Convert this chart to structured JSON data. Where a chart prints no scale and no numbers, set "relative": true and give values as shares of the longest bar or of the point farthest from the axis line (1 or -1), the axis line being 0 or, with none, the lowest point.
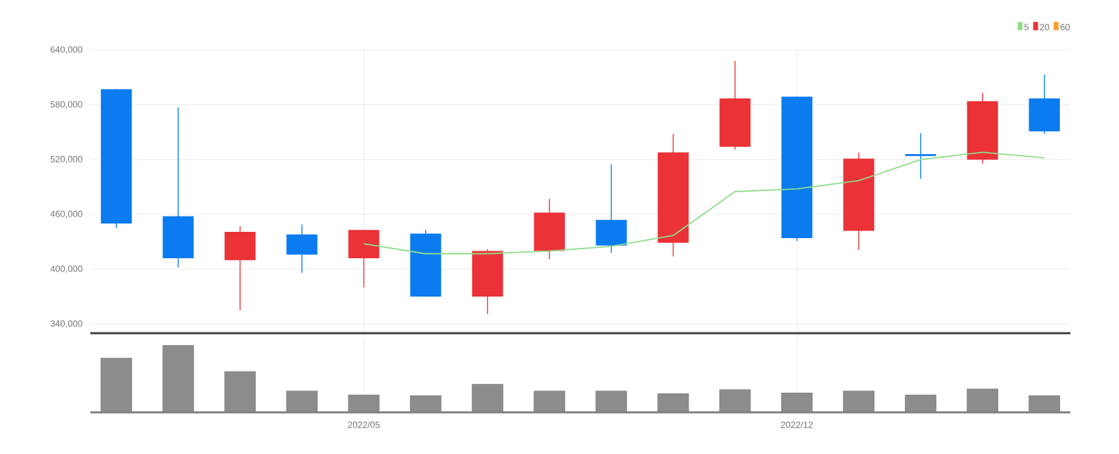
{
  "chart_data": [
    {
      "type": "candlestick",
      "categories": [
        null,
        null,
        null,
        null,
        "2022/05",
        null,
        null,
        null,
        null,
        null,
        null,
        "2022/12",
        null,
        null,
        null,
        null
      ],
      "ohlc": [
        [
          597000,
          597000,
          445000,
          450000
        ],
        [
          458000,
          577000,
          402000,
          412000
        ],
        [
          410000,
          447000,
          355000,
          441000
        ],
        [
          438000,
          449000,
          396000,
          416000
        ],
        [
          412000,
          443000,
          380000,
          443000
        ],
        [
          439000,
          443000,
          370000,
          370000
        ],
        [
          370000,
          422000,
          351000,
          420000
        ],
        [
          420000,
          477000,
          411000,
          462000
        ],
        [
          454000,
          515000,
          418000,
          426000
        ],
        [
          429000,
          548000,
          414000,
          528000
        ],
        [
          534000,
          628000,
          531000,
          587000
        ],
        [
          589000,
          589000,
          431000,
          434000
        ],
        [
          442000,
          528000,
          421000,
          521000
        ],
        [
          526000,
          549000,
          499000,
          524000
        ],
        [
          520000,
          593000,
          516000,
          584000
        ],
        [
          587000,
          613000,
          548000,
          551000
        ]
      ],
      "colors": [
        "#0a7cf0",
        "#0a7cf0",
        "#ea3237",
        "#0a7cf0",
        "#ea3237",
        "#0a7cf0",
        "#ea3237",
        "#ea3237",
        "#0a7cf0",
        "#ea3237",
        "#ea3237",
        "#0a7cf0",
        "#ea3237",
        "#0a7cf0",
        "#ea3237",
        "#0a7cf0"
      ],
      "series": [
        {
          "name": "5",
          "type": "line",
          "color": "#8fdc8a",
          "values": [
            null,
            null,
            null,
            null,
            428000,
            417000,
            417000,
            420000,
            425000,
            437000,
            485000,
            488000,
            497000,
            520000,
            528000,
            522000
          ]
        },
        {
          "name": "20",
          "type": "line",
          "color": "#ea3237",
          "values": [
            null,
            null,
            null,
            null,
            null,
            null,
            null,
            null,
            null,
            null,
            null,
            null,
            null,
            null,
            null,
            null
          ]
        },
        {
          "name": "60",
          "type": "line",
          "color": "#f5a030",
          "values": [
            null,
            null,
            null,
            null,
            null,
            null,
            null,
            null,
            null,
            null,
            null,
            null,
            null,
            null,
            null,
            null
          ]
        }
      ],
      "ylim": [
        330000,
        640000
      ],
      "yticks": [
        {
          "value": 340000,
          "label": "340,000"
        },
        {
          "value": 400000,
          "label": "400,000"
        },
        {
          "value": 460000,
          "label": "460,000"
        },
        {
          "value": 520000,
          "label": "520,000"
        },
        {
          "value": 580000,
          "label": "580,000"
        },
        {
          "value": 640000,
          "label": "640,000"
        }
      ],
      "grid": true,
      "legend": "top right",
      "tick_labels": "y"
    },
    {
      "type": "bar",
      "relative": true,
      "categories": [
        null,
        null,
        null,
        null,
        "2022/05",
        null,
        null,
        null,
        null,
        null,
        null,
        "2022/12",
        null,
        null,
        null,
        null
      ],
      "values": [
        0.81,
        1,
        0.61,
        0.32,
        0.26,
        0.25,
        0.42,
        0.32,
        0.32,
        0.28,
        0.34,
        0.29,
        0.32,
        0.26,
        0.35,
        0.25
      ],
      "color": "#8c8c8c",
      "grid": "x",
      "tick_labels": "x"
    }
  ]
}
